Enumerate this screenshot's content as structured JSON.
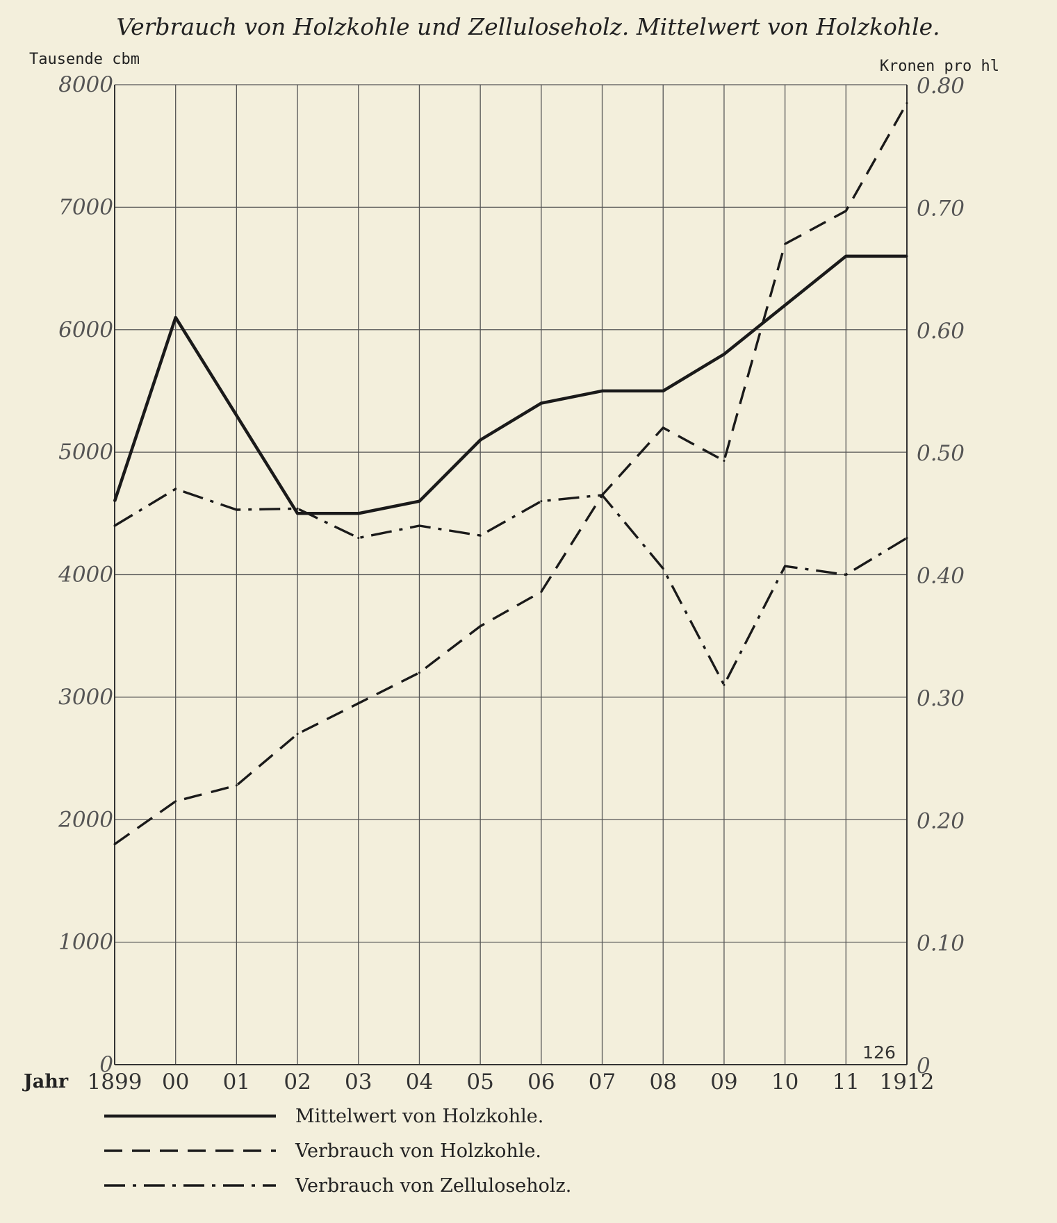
{
  "chart_data": {
    "type": "line",
    "title": "Verbrauch von Holzkohle und Zelluloseholz.  Mittelwert von Holzkohle.",
    "y_left_label": "Tausende cbm",
    "y_right_label": "Kronen pro hl",
    "xlabel": "Jahr",
    "categories": [
      "1899",
      "00",
      "01",
      "02",
      "03",
      "04",
      "05",
      "06",
      "07",
      "08",
      "09",
      "10",
      "11",
      "1912"
    ],
    "ylim_left": [
      0,
      8000
    ],
    "ylim_right": [
      0,
      0.8
    ],
    "y_ticks_left": [
      "0",
      "1000",
      "2000",
      "3000",
      "4000",
      "5000",
      "6000",
      "7000",
      "8000"
    ],
    "y_ticks_right": [
      "0",
      "0.10",
      "0.20",
      "0.30",
      "0.40",
      "0.50",
      "0.60",
      "0.70",
      "0.80"
    ],
    "grid": true,
    "page_number": "126",
    "legend_position": "bottom-left",
    "series": [
      {
        "name": "Mittelwert von Holzkohle.",
        "axis": "right",
        "style": "solid",
        "color": "#1a1a1a",
        "x": [
          "1899",
          "00",
          "01",
          "02",
          "03",
          "04",
          "05",
          "06",
          "07",
          "08",
          "09",
          "10",
          "11",
          "1912"
        ],
        "values": [
          0.46,
          0.61,
          0.53,
          0.45,
          0.45,
          0.46,
          0.51,
          0.54,
          0.55,
          0.55,
          0.58,
          0.62,
          0.66,
          0.66
        ]
      },
      {
        "name": "Verbrauch von Holzkohle.",
        "axis": "left",
        "style": "dashed",
        "color": "#1a1a1a",
        "x": [
          "1899",
          "00",
          "01",
          "02",
          "03",
          "04",
          "05",
          "06",
          "07",
          "08",
          "09",
          "10",
          "11",
          "1912"
        ],
        "values": [
          1800,
          2150,
          2280,
          2700,
          2950,
          3200,
          3580,
          3860,
          4650,
          5200,
          4930,
          6700,
          6970,
          7850
        ]
      },
      {
        "name": "Verbrauch von Zelluloseholz.",
        "axis": "left",
        "style": "dash-dot",
        "color": "#1a1a1a",
        "x": [
          "1899",
          "00",
          "01",
          "02",
          "03",
          "04",
          "05",
          "06",
          "07",
          "08",
          "09",
          "10",
          "11",
          "1912"
        ],
        "values": [
          4400,
          4700,
          4530,
          4540,
          4300,
          4400,
          4320,
          4600,
          4650,
          4050,
          3100,
          4070,
          4000,
          4300
        ]
      }
    ]
  }
}
